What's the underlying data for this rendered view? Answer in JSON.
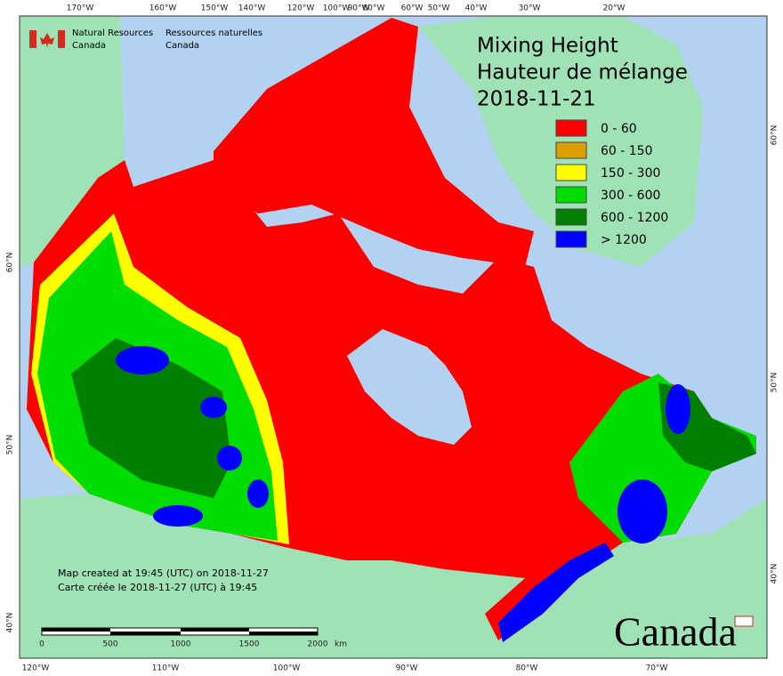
{
  "header": {
    "org_en": [
      "Natural Resources",
      "Canada"
    ],
    "org_fr": [
      "Ressources naturelles",
      "Canada"
    ]
  },
  "title": [
    "Mixing Height",
    "Hauteur de mélange",
    "2018-11-21"
  ],
  "legend": [
    {
      "label": "0 - 60",
      "color": "#ff0000"
    },
    {
      "label": "60 - 150",
      "color": "#dba000"
    },
    {
      "label": "150 - 300",
      "color": "#ffff00"
    },
    {
      "label": "300 - 600",
      "color": "#00dd00"
    },
    {
      "label": "600 - 1200",
      "color": "#007f00"
    },
    {
      "label": "> 1200",
      "color": "#0000ff"
    }
  ],
  "top_labels": [
    "170°W",
    "160°W",
    "150°W",
    "140°W",
    "120°W",
    "100°W",
    "90°W",
    "80°W",
    "60°W",
    "50°W",
    "40°W",
    "30°W",
    "20°W"
  ],
  "bottom_labels": [
    "120°W",
    "110°W",
    "100°W",
    "90°W",
    "80°W",
    "70°W"
  ],
  "left_labels": [
    "60°N",
    "50°N",
    "40°N"
  ],
  "right_labels": [
    "60°N",
    "50°N",
    "40°N"
  ],
  "notes": [
    "Map created at 19:45 (UTC) on 2018-11-27",
    "Carte créée le 2018-11-27 (UTC) à 19:45"
  ],
  "scale": {
    "labels": [
      "0",
      "500",
      "1000",
      "1500",
      "2000"
    ],
    "unit": "km"
  },
  "wordmark": "Canada"
}
